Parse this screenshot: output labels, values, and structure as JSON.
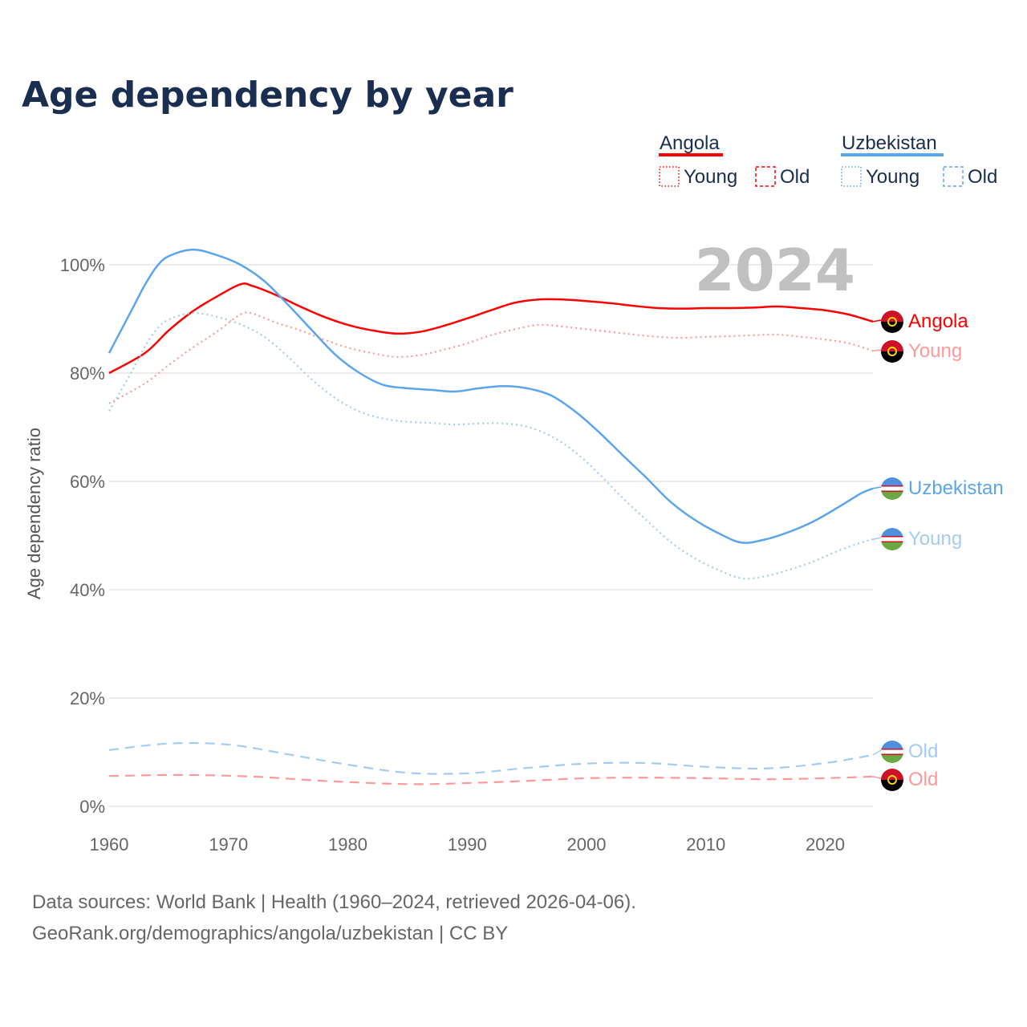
{
  "chart_data": {
    "type": "line",
    "title": "Age dependency by year",
    "ylabel": "Age dependency ratio",
    "xlabel": "",
    "xlim": [
      1960,
      2024
    ],
    "ylim": [
      0,
      100
    ],
    "x_ticks": [
      "1960",
      "1970",
      "1980",
      "1990",
      "2000",
      "2010",
      "2020"
    ],
    "y_ticks": [
      "0%",
      "20%",
      "40%",
      "60%",
      "80%",
      "100%"
    ],
    "year_watermark": "2024",
    "legend": {
      "groups": [
        {
          "country": "Angola",
          "items": [
            "Young",
            "Old"
          ]
        },
        {
          "country": "Uzbekistan",
          "items": [
            "Young",
            "Old"
          ]
        }
      ],
      "placement": "top-right"
    },
    "colors": {
      "Angola": "#ff0000",
      "Angola_light": "#ff9999",
      "Uzbekistan": "#5aa5ec",
      "Uzbekistan_light": "#a4cbf3"
    },
    "series": [
      {
        "name": "Angola",
        "end_label": "Angola",
        "style": "solid",
        "color": "#ff0000",
        "flag": "angola",
        "x": [
          1960,
          1963,
          1965,
          1967,
          1969,
          1971,
          1972,
          1974,
          1976,
          1978,
          1980,
          1982,
          1984,
          1986,
          1988,
          1990,
          1992,
          1994,
          1996,
          1998,
          2000,
          2002,
          2004,
          2006,
          2008,
          2010,
          2012,
          2014,
          2016,
          2018,
          2020,
          2022,
          2024
        ],
        "y": [
          80.0,
          83.7,
          87.9,
          91.4,
          94.1,
          96.4,
          96.1,
          94.4,
          92.3,
          90.4,
          88.9,
          87.9,
          87.3,
          87.6,
          88.7,
          90.1,
          91.6,
          93.0,
          93.6,
          93.6,
          93.3,
          92.9,
          92.4,
          92.0,
          91.9,
          92.0,
          92.0,
          92.1,
          92.3,
          92.0,
          91.6,
          90.8,
          89.5
        ]
      },
      {
        "name": "Angola Young",
        "end_label": "Young",
        "style": "dotted",
        "color": "#ff9999",
        "flag": "angola",
        "x": [
          1960,
          1963,
          1965,
          1967,
          1969,
          1971,
          1972,
          1974,
          1976,
          1978,
          1980,
          1982,
          1984,
          1986,
          1988,
          1990,
          1992,
          1994,
          1996,
          1998,
          2000,
          2002,
          2004,
          2006,
          2008,
          2010,
          2012,
          2014,
          2016,
          2018,
          2020,
          2022,
          2024
        ],
        "y": [
          74.4,
          78.1,
          81.5,
          84.7,
          87.6,
          90.8,
          91.0,
          89.3,
          87.9,
          86.2,
          84.7,
          83.7,
          83.0,
          83.3,
          84.3,
          85.5,
          87.0,
          88.1,
          88.9,
          88.6,
          88.1,
          87.6,
          87.1,
          86.7,
          86.5,
          86.7,
          86.8,
          87.0,
          87.1,
          86.7,
          86.2,
          85.5,
          84.1
        ]
      },
      {
        "name": "Angola Old",
        "end_label": "Old",
        "style": "dashed",
        "color": "#ff9999",
        "flag": "angola",
        "x": [
          1960,
          1966,
          1972,
          1978,
          1985,
          1990,
          1995,
          2000,
          2005,
          2010,
          2015,
          2020,
          2024
        ],
        "y": [
          5.6,
          5.8,
          5.5,
          4.7,
          4.1,
          4.3,
          4.7,
          5.2,
          5.3,
          5.2,
          5.0,
          5.2,
          5.5
        ]
      },
      {
        "name": "Uzbekistan",
        "end_label": "Uzbekistan",
        "style": "solid",
        "color": "#5aa5ec",
        "flag": "uzbekistan",
        "x": [
          1960,
          1962,
          1963,
          1964,
          1965,
          1967,
          1969,
          1971,
          1973,
          1975,
          1977,
          1979,
          1981,
          1983,
          1985,
          1987,
          1989,
          1991,
          1993,
          1995,
          1997,
          1999,
          2001,
          2003,
          2005,
          2007,
          2009,
          2011,
          2013,
          2015,
          2017,
          2019,
          2021,
          2023,
          2024
        ],
        "y": [
          83.7,
          92.1,
          96.3,
          99.7,
          101.6,
          102.8,
          101.8,
          100.0,
          97.0,
          92.6,
          87.9,
          83.3,
          80.0,
          77.8,
          77.2,
          76.9,
          76.6,
          77.2,
          77.6,
          77.2,
          75.9,
          73.0,
          69.2,
          64.9,
          60.7,
          56.3,
          53.0,
          50.5,
          48.7,
          49.3,
          50.7,
          52.6,
          55.1,
          57.8,
          58.7
        ]
      },
      {
        "name": "Uzbekistan Young",
        "end_label": "Young",
        "style": "dotted",
        "color": "#a4cbf3",
        "flag": "uzbekistan",
        "x": [
          1960,
          1962,
          1963,
          1964,
          1965,
          1967,
          1969,
          1971,
          1973,
          1975,
          1977,
          1979,
          1981,
          1983,
          1985,
          1987,
          1989,
          1991,
          1993,
          1995,
          1997,
          1999,
          2001,
          2003,
          2005,
          2007,
          2009,
          2011,
          2013,
          2015,
          2017,
          2019,
          2021,
          2023,
          2024
        ],
        "y": [
          73.0,
          80.7,
          84.9,
          88.1,
          89.9,
          91.1,
          90.4,
          89.0,
          86.7,
          83.0,
          78.8,
          75.3,
          72.9,
          71.6,
          71.0,
          70.8,
          70.5,
          70.7,
          70.7,
          70.1,
          68.4,
          65.5,
          61.5,
          57.0,
          52.9,
          48.9,
          45.9,
          43.7,
          42.1,
          42.5,
          43.7,
          45.2,
          47.1,
          48.7,
          49.3
        ]
      },
      {
        "name": "Uzbekistan Old",
        "end_label": "Old",
        "style": "dashed",
        "color": "#a4cbf3",
        "flag": "uzbekistan",
        "x": [
          1960,
          1965,
          1970,
          1975,
          1980,
          1985,
          1990,
          1995,
          2000,
          2005,
          2010,
          2015,
          2020,
          2024
        ],
        "y": [
          10.4,
          11.6,
          11.4,
          9.6,
          7.7,
          6.2,
          6.1,
          7.1,
          7.9,
          8.0,
          7.3,
          7.0,
          8.0,
          9.5
        ]
      }
    ]
  },
  "footer": {
    "source": "Data sources: World Bank | Health (1960–2024, retrieved 2026-04-06).",
    "link": "GeoRank.org/demographics/angola/uzbekistan | CC BY"
  }
}
